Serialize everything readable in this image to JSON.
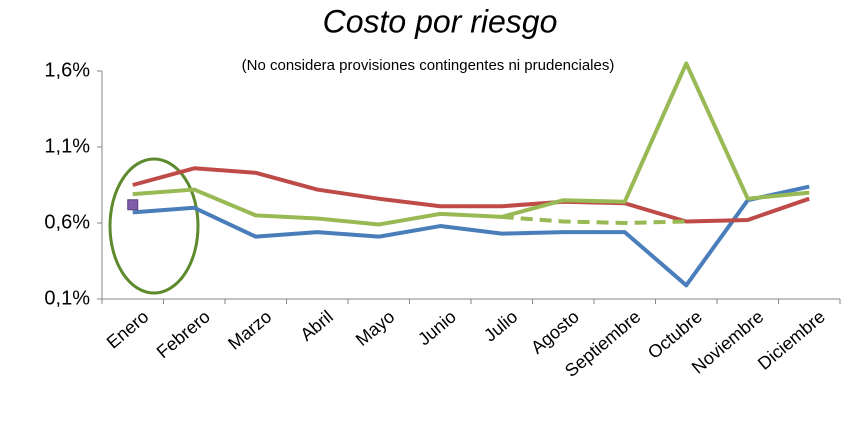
{
  "chart_data": {
    "type": "line",
    "title": "Costo por riesgo",
    "subtitle": "(No considera provisiones contingentes ni prudenciales)",
    "categories": [
      "Enero",
      "Febrero",
      "Marzo",
      "Abril",
      "Mayo",
      "Junio",
      "Julio",
      "Agosto",
      "Septiembre",
      "Octubre",
      "Noviembre",
      "Diciembre"
    ],
    "series": [
      {
        "color": "#4a7ebb",
        "values": [
          0.67,
          0.7,
          0.51,
          0.54,
          0.51,
          0.58,
          0.53,
          0.54,
          0.54,
          0.19,
          0.75,
          0.84
        ]
      },
      {
        "color": "#be4b48",
        "values": [
          0.85,
          0.96,
          0.93,
          0.82,
          0.76,
          0.71,
          0.71,
          0.74,
          0.73,
          0.61,
          0.62,
          0.76
        ]
      },
      {
        "color": "#98b954",
        "values": [
          0.79,
          0.82,
          0.65,
          0.63,
          0.59,
          0.66,
          0.64,
          0.75,
          0.74,
          1.65,
          0.76,
          0.8
        ]
      },
      {
        "color": "#98b954",
        "dashed": true,
        "values": [
          null,
          null,
          null,
          null,
          null,
          null,
          0.64,
          0.61,
          0.6,
          0.61,
          null,
          null
        ]
      },
      {
        "color": "#7e5fa8",
        "marker": "square",
        "values": [
          0.72,
          null,
          null,
          null,
          null,
          null,
          null,
          null,
          null,
          null,
          null,
          null
        ]
      }
    ],
    "ylim": [
      0.1,
      1.6
    ],
    "yticks": [
      {
        "value": 0.1,
        "label": "0,1%"
      },
      {
        "value": 0.6,
        "label": "0,6%"
      },
      {
        "value": 1.1,
        "label": "1,1%"
      },
      {
        "value": 1.6,
        "label": "1,6%"
      }
    ],
    "grid": false
  }
}
